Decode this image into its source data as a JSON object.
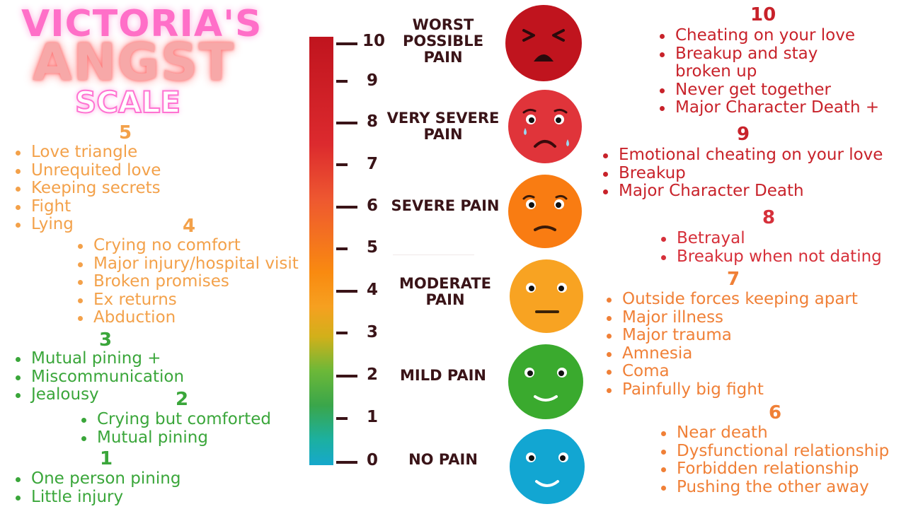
{
  "title": {
    "line1": "VICTORIA'S",
    "line2": "ANGST",
    "line3": "SCALE"
  },
  "left_groups": [
    {
      "number": "5",
      "color": "#f3a14a",
      "items": [
        "Love triangle",
        "Unrequited love",
        "Keeping secrets",
        "Fight",
        "Lying"
      ]
    },
    {
      "number": "4",
      "color": "#f3a14a",
      "items": [
        "Crying no comfort",
        "Major injury/hospital visit",
        "Broken promises",
        "Ex returns",
        "Abduction"
      ]
    },
    {
      "number": "3",
      "color": "#3aa63a",
      "items": [
        "Mutual pining +",
        "Miscommunication",
        "Jealousy"
      ]
    },
    {
      "number": "2",
      "color": "#3aa63a",
      "items": [
        "Crying but comforted",
        "Mutual pining"
      ]
    },
    {
      "number": "1",
      "color": "#3aa63a",
      "items": [
        "One person pining",
        "Little injury"
      ]
    }
  ],
  "right_groups": [
    {
      "number": "10",
      "color": "#c8222a",
      "items": [
        "Cheating on your love",
        "Breakup and stay\nbroken up",
        "Never get together",
        "Major Character Death +"
      ]
    },
    {
      "number": "9",
      "color": "#c8222a",
      "items": [
        "Emotional cheating on your love",
        "Breakup",
        "Major Character Death"
      ]
    },
    {
      "number": "8",
      "color": "#d6303a",
      "items": [
        "Betrayal",
        "Breakup when not dating"
      ]
    },
    {
      "number": "7",
      "color": "#f08037",
      "items": [
        "Outside forces keeping apart",
        "Major illness",
        "Major trauma",
        "Amnesia",
        "Coma",
        "Painfully big fight"
      ]
    },
    {
      "number": "6",
      "color": "#f08037",
      "items": [
        "Near death",
        "Dysfunctional relationship",
        "Forbidden relationship",
        "Pushing the other away"
      ]
    }
  ],
  "scale": {
    "numbers": [
      "10",
      "9",
      "8",
      "7",
      "6",
      "5",
      "4",
      "3",
      "2",
      "1",
      "0"
    ],
    "labels": [
      "WORST\nPOSSIBLE\nPAIN",
      "VERY SEVERE\nPAIN",
      "SEVERE PAIN",
      "MODERATE\nPAIN",
      "MILD PAIN",
      "NO PAIN"
    ]
  },
  "faces": [
    {
      "name": "worst-face-icon",
      "color": "#c0141e"
    },
    {
      "name": "crying-face-icon",
      "color": "#e0343a"
    },
    {
      "name": "sad-face-icon",
      "color": "#f97c12"
    },
    {
      "name": "neutral-face-icon",
      "color": "#f8a322"
    },
    {
      "name": "smile-face-icon",
      "color": "#3aaa2e"
    },
    {
      "name": "happy-face-icon",
      "color": "#12a6d2"
    }
  ]
}
